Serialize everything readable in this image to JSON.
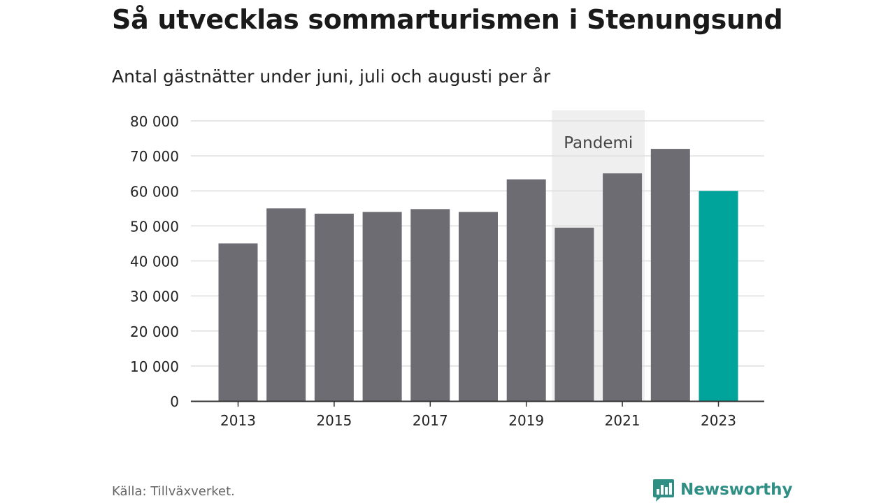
{
  "header": {
    "title": "Så utvecklas sommarturismen i Stenungsund",
    "subtitle": "Antal gästnätter under juni, juli och augusti per år"
  },
  "footer": {
    "source": "Källa: Tillväxverket.",
    "brand": "Newsworthy"
  },
  "colors": {
    "bar": "#6d6c73",
    "highlight": "#00a49a",
    "band": "#efefef",
    "grid": "#dddddd",
    "axis": "#333333",
    "brand": "#2f8f85"
  },
  "chart_data": {
    "type": "bar",
    "categories": [
      "2013",
      "2014",
      "2015",
      "2016",
      "2017",
      "2018",
      "2019",
      "2020",
      "2021",
      "2022",
      "2023"
    ],
    "values": [
      45000,
      55000,
      53500,
      54000,
      54800,
      54000,
      63300,
      49500,
      65000,
      72000,
      60000
    ],
    "highlight_index": 10,
    "x_tick_labels": [
      "2013",
      "2015",
      "2017",
      "2019",
      "2021",
      "2023"
    ],
    "y_ticks": [
      0,
      10000,
      20000,
      30000,
      40000,
      50000,
      60000,
      70000,
      80000
    ],
    "y_tick_labels": [
      "0",
      "10 000",
      "20 000",
      "30 000",
      "40 000",
      "50 000",
      "60 000",
      "70 000",
      "80 000"
    ],
    "ylim": [
      0,
      80000
    ],
    "grid": true,
    "annotation": {
      "label": "Pandemi",
      "categories": [
        "2020",
        "2021"
      ]
    }
  }
}
